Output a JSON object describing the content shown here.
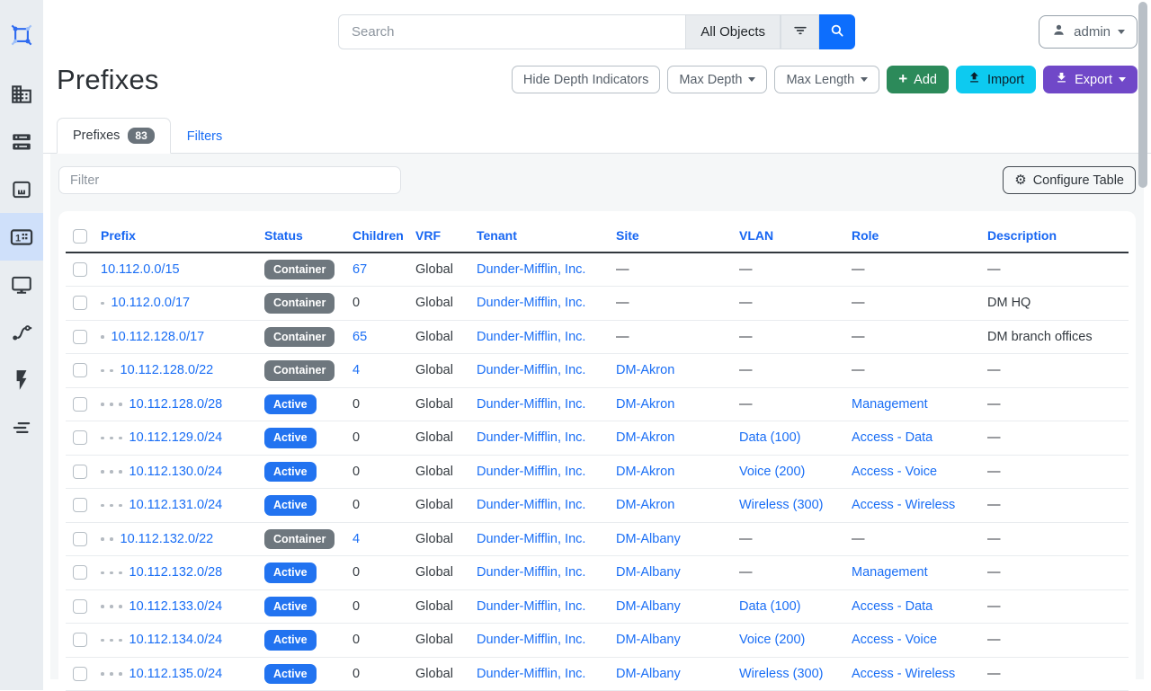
{
  "sidebar": {
    "items": [
      {
        "icon": "netbox-logo",
        "active": false
      },
      {
        "icon": "organization",
        "active": false
      },
      {
        "icon": "devices",
        "active": false
      },
      {
        "icon": "connections",
        "active": false
      },
      {
        "icon": "ipam",
        "active": true
      },
      {
        "icon": "virtualization",
        "active": false
      },
      {
        "icon": "circuits",
        "active": false
      },
      {
        "icon": "power",
        "active": false
      },
      {
        "icon": "other",
        "active": false
      }
    ]
  },
  "topbar": {
    "search_placeholder": "Search",
    "scope_label": "All Objects",
    "user_label": "admin"
  },
  "page": {
    "title": "Prefixes",
    "actions": {
      "hide_depth": "Hide Depth Indicators",
      "max_depth": "Max Depth",
      "max_length": "Max Length",
      "add": "Add",
      "import": "Import",
      "export": "Export"
    }
  },
  "tabs": {
    "prefixes_label": "Prefixes",
    "prefixes_count": "83",
    "filters_label": "Filters"
  },
  "toolbar": {
    "filter_placeholder": "Filter",
    "configure_table": "Configure Table"
  },
  "table": {
    "columns": [
      "Prefix",
      "Status",
      "Children",
      "VRF",
      "Tenant",
      "Site",
      "VLAN",
      "Role",
      "Description"
    ],
    "rows": [
      {
        "depth": 0,
        "prefix": "10.112.0.0/15",
        "status": "Container",
        "children": "67",
        "children_link": true,
        "vrf": "Global",
        "tenant": "Dunder-Mifflin, Inc.",
        "site": "—",
        "vlan": "—",
        "role": "—",
        "description": "—"
      },
      {
        "depth": 1,
        "prefix": "10.112.0.0/17",
        "status": "Container",
        "children": "0",
        "children_link": false,
        "vrf": "Global",
        "tenant": "Dunder-Mifflin, Inc.",
        "site": "—",
        "vlan": "—",
        "role": "—",
        "description": "DM HQ"
      },
      {
        "depth": 1,
        "prefix": "10.112.128.0/17",
        "status": "Container",
        "children": "65",
        "children_link": true,
        "vrf": "Global",
        "tenant": "Dunder-Mifflin, Inc.",
        "site": "—",
        "vlan": "—",
        "role": "—",
        "description": "DM branch offices"
      },
      {
        "depth": 2,
        "prefix": "10.112.128.0/22",
        "status": "Container",
        "children": "4",
        "children_link": true,
        "vrf": "Global",
        "tenant": "Dunder-Mifflin, Inc.",
        "site": "DM-Akron",
        "vlan": "—",
        "role": "—",
        "description": "—"
      },
      {
        "depth": 3,
        "prefix": "10.112.128.0/28",
        "status": "Active",
        "children": "0",
        "children_link": false,
        "vrf": "Global",
        "tenant": "Dunder-Mifflin, Inc.",
        "site": "DM-Akron",
        "vlan": "—",
        "role": "Management",
        "description": "—"
      },
      {
        "depth": 3,
        "prefix": "10.112.129.0/24",
        "status": "Active",
        "children": "0",
        "children_link": false,
        "vrf": "Global",
        "tenant": "Dunder-Mifflin, Inc.",
        "site": "DM-Akron",
        "vlan": "Data (100)",
        "role": "Access - Data",
        "description": "—"
      },
      {
        "depth": 3,
        "prefix": "10.112.130.0/24",
        "status": "Active",
        "children": "0",
        "children_link": false,
        "vrf": "Global",
        "tenant": "Dunder-Mifflin, Inc.",
        "site": "DM-Akron",
        "vlan": "Voice (200)",
        "role": "Access - Voice",
        "description": "—"
      },
      {
        "depth": 3,
        "prefix": "10.112.131.0/24",
        "status": "Active",
        "children": "0",
        "children_link": false,
        "vrf": "Global",
        "tenant": "Dunder-Mifflin, Inc.",
        "site": "DM-Akron",
        "vlan": "Wireless (300)",
        "role": "Access - Wireless",
        "description": "—"
      },
      {
        "depth": 2,
        "prefix": "10.112.132.0/22",
        "status": "Container",
        "children": "4",
        "children_link": true,
        "vrf": "Global",
        "tenant": "Dunder-Mifflin, Inc.",
        "site": "DM-Albany",
        "vlan": "—",
        "role": "—",
        "description": "—"
      },
      {
        "depth": 3,
        "prefix": "10.112.132.0/28",
        "status": "Active",
        "children": "0",
        "children_link": false,
        "vrf": "Global",
        "tenant": "Dunder-Mifflin, Inc.",
        "site": "DM-Albany",
        "vlan": "—",
        "role": "Management",
        "description": "—"
      },
      {
        "depth": 3,
        "prefix": "10.112.133.0/24",
        "status": "Active",
        "children": "0",
        "children_link": false,
        "vrf": "Global",
        "tenant": "Dunder-Mifflin, Inc.",
        "site": "DM-Albany",
        "vlan": "Data (100)",
        "role": "Access - Data",
        "description": "—"
      },
      {
        "depth": 3,
        "prefix": "10.112.134.0/24",
        "status": "Active",
        "children": "0",
        "children_link": false,
        "vrf": "Global",
        "tenant": "Dunder-Mifflin, Inc.",
        "site": "DM-Albany",
        "vlan": "Voice (200)",
        "role": "Access - Voice",
        "description": "—"
      },
      {
        "depth": 3,
        "prefix": "10.112.135.0/24",
        "status": "Active",
        "children": "0",
        "children_link": false,
        "vrf": "Global",
        "tenant": "Dunder-Mifflin, Inc.",
        "site": "DM-Albany",
        "vlan": "Wireless (300)",
        "role": "Access - Wireless",
        "description": "—"
      }
    ]
  },
  "colors": {
    "accent": "#0d6efd",
    "link": "#1a6ef5",
    "status": {
      "Container": "#6e777e",
      "Active": "#2273f0"
    },
    "add_button": "#2c8a5a",
    "import_button": "#0dcaf0",
    "export_button": "#7048c8"
  }
}
